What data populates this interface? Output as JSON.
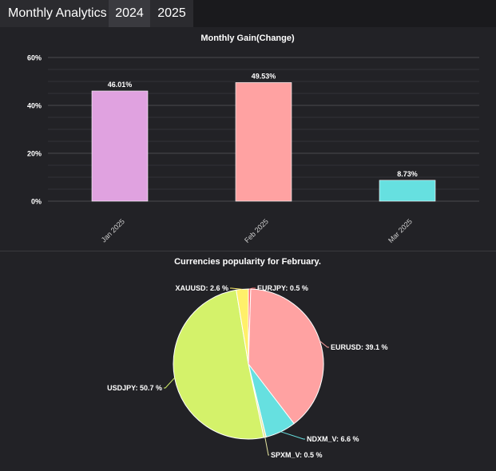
{
  "header": {
    "title": "Monthly Analytics",
    "tabs": [
      {
        "label": "2024",
        "active": false
      },
      {
        "label": "2025",
        "active": true
      }
    ]
  },
  "chart_data": [
    {
      "type": "bar",
      "title": "Monthly Gain(Change)",
      "categories": [
        "Jan 2025",
        "Feb 2025",
        "Mar 2025"
      ],
      "values": [
        46.01,
        49.53,
        8.73
      ],
      "value_labels": [
        "46.01%",
        "49.53%",
        "8.73%"
      ],
      "colors": [
        "#e0a2e0",
        "#ffa2a2",
        "#66e0e0"
      ],
      "ylim": [
        0,
        60
      ],
      "yticks": [
        0,
        20,
        40,
        60
      ],
      "ytick_labels": [
        "0%",
        "20%",
        "40%",
        "60%"
      ],
      "grid": true,
      "xlabel": "",
      "ylabel": ""
    },
    {
      "type": "pie",
      "title": "Currencies popularity for February.",
      "slices": [
        {
          "label": "EURJPY",
          "value": 0.5,
          "display": "EURJPY: 0.5 %",
          "color": "#ff6b6b"
        },
        {
          "label": "EURUSD",
          "value": 39.1,
          "display": "EURUSD: 39.1 %",
          "color": "#ffa2a2"
        },
        {
          "label": "NDXM_V",
          "value": 6.6,
          "display": "NDXM_V: 6.6 %",
          "color": "#66e0e0"
        },
        {
          "label": "SPXM_V",
          "value": 0.5,
          "display": "SPXM_V: 0.5 %",
          "color": "#e6e6a0"
        },
        {
          "label": "USDJPY",
          "value": 50.7,
          "display": "USDJPY: 50.7 %",
          "color": "#d4f26a"
        },
        {
          "label": "XAUUSD",
          "value": 2.6,
          "display": "XAUUSD: 2.6 %",
          "color": "#fff06a"
        }
      ]
    }
  ]
}
